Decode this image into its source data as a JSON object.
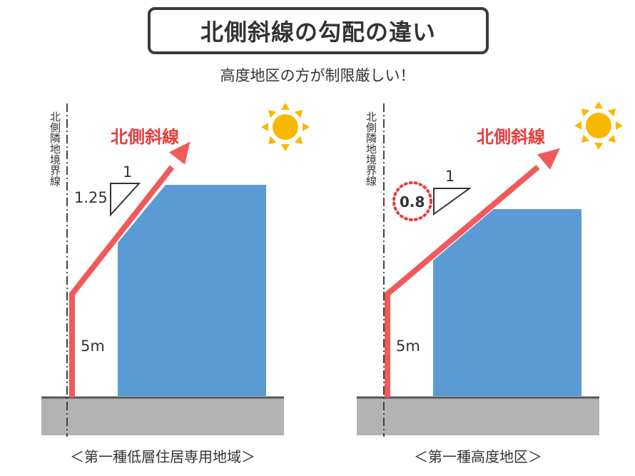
{
  "title": "北側斜線の勾配の違い",
  "subtitle": "高度地区の方が制限厳しい！",
  "colors": {
    "building": "#5b9bd5",
    "ground": "#b3b3b3",
    "arrow": "#f05a5a",
    "sun": "#f9b800",
    "label_red": "#e83c3c",
    "text": "#333333"
  },
  "left_panel": {
    "boundary_label": "北側隣地境界線",
    "arrow_label": "北側斜線",
    "slope_run": "1",
    "slope_rise": "1.25",
    "height_label": "5m",
    "caption": "＜第一種低層住居専用地域＞"
  },
  "right_panel": {
    "boundary_label": "北側隣地境界線",
    "arrow_label": "北側斜線",
    "slope_run": "1",
    "slope_rise": "0.8",
    "height_label": "5m",
    "caption": "＜第一種高度地区＞"
  },
  "icons": [
    "sun-icon",
    "sun-icon"
  ]
}
